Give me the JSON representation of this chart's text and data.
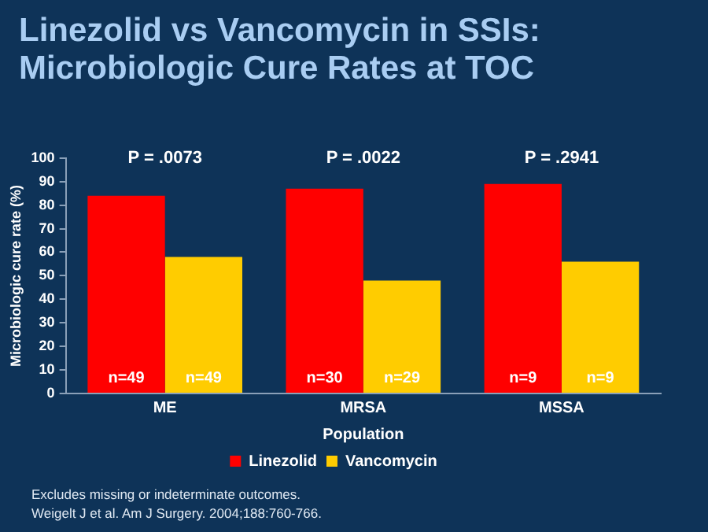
{
  "chart_data": {
    "type": "bar",
    "title": "Linezolid vs Vancomycin in SSIs:\nMicrobiologic Cure Rates at TOC",
    "xlabel": "Population",
    "ylabel": "Microbiologic cure rate (%)",
    "categories": [
      "ME",
      "MRSA",
      "MSSA"
    ],
    "series": [
      {
        "name": "Linezolid",
        "color": "#ff0000",
        "values": [
          84,
          87,
          89
        ]
      },
      {
        "name": "Vancomycin",
        "color": "#ffcc00",
        "values": [
          58,
          48,
          56
        ]
      }
    ],
    "ylim": [
      0,
      100
    ],
    "yticks": [
      0,
      10,
      20,
      30,
      40,
      50,
      60,
      70,
      80,
      90,
      100
    ],
    "grid": false,
    "legend": "bottom",
    "annotations": [
      "P = .0073",
      "P = .0022",
      "P = .2941",
      "n=49",
      "n=30",
      "n=9",
      "n=49",
      "n=29",
      "n=9",
      "Excludes missing or indeterminate outcomes.",
      "Weigelt J et al. Am J Surgery. 2004;188:760-766."
    ]
  }
}
